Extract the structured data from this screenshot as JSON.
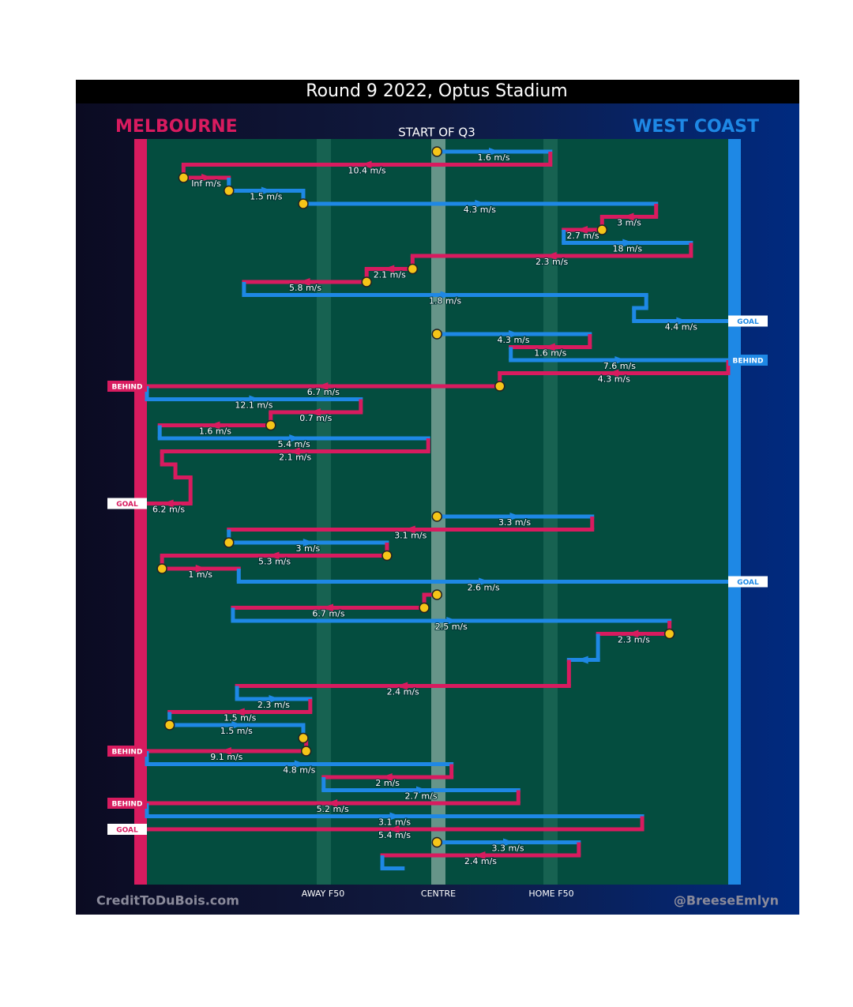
{
  "title": "Round 9 2022, Optus Stadium",
  "period": "START OF Q3",
  "teams": [
    {
      "name": "MELBOURNE",
      "color": "#d81b5f"
    },
    {
      "name": "WEST COAST",
      "color": "#1e88e5"
    }
  ],
  "field_lines": [
    "AWAY F50",
    "CENTRE",
    "HOME F50"
  ],
  "credits": [
    "CreditToDuBois.com",
    "@BreeseEmlyn"
  ],
  "chains": [
    [
      {
        "row": 0,
        "team": "WEST COAST",
        "from": 49.9,
        "to": 69.4,
        "speed": "1.6 m/s",
        "mark": true
      },
      {
        "row": 1,
        "team": "MELBOURNE",
        "from": 69.4,
        "to": 6.3,
        "speed": "10.4 m/s"
      },
      {
        "row": 2,
        "team": "MELBOURNE",
        "from": 6.3,
        "to": 14.1,
        "speed": "Inf m/s",
        "mark": true
      },
      {
        "row": 3,
        "team": "WEST COAST",
        "from": 14.1,
        "to": 26.9,
        "speed": "1.5 m/s",
        "mark": true
      },
      {
        "row": 4,
        "team": "WEST COAST",
        "from": 26.9,
        "to": 87.6,
        "speed": "4.3 m/s",
        "mark": true
      },
      {
        "row": 5,
        "team": "MELBOURNE",
        "from": 87.6,
        "to": 78.3,
        "speed": "3 m/s"
      },
      {
        "row": 6,
        "team": "MELBOURNE",
        "from": 78.3,
        "to": 71.7,
        "speed": "2.7 m/s",
        "mark": true
      },
      {
        "row": 7,
        "team": "WEST COAST",
        "from": 71.7,
        "to": 93.6,
        "speed": "18 m/s"
      },
      {
        "row": 8,
        "team": "MELBOURNE",
        "from": 93.6,
        "to": 45.7,
        "speed": "2.3 m/s"
      },
      {
        "row": 9,
        "team": "MELBOURNE",
        "from": 45.7,
        "to": 37.8,
        "speed": "2.1 m/s",
        "mark": true
      },
      {
        "row": 10,
        "team": "MELBOURNE",
        "from": 37.8,
        "to": 16.7,
        "speed": "5.8 m/s",
        "mark": true
      },
      {
        "row": 11,
        "team": "WEST COAST",
        "from": 16.7,
        "to": 85.9,
        "speed": "1.8 m/s"
      },
      {
        "row": 12,
        "team": "WEST COAST",
        "from": 85.9,
        "to": 83.8
      },
      {
        "row": 13,
        "team": "WEST COAST",
        "from": 83.8,
        "to": 100,
        "speed": "4.4 m/s",
        "result": "GOAL"
      }
    ],
    [
      {
        "row": 14,
        "team": "WEST COAST",
        "from": 49.9,
        "to": 76.2,
        "speed": "4.3 m/s",
        "mark": true
      },
      {
        "row": 15,
        "team": "MELBOURNE",
        "from": 76.2,
        "to": 62.6,
        "speed": "1.6 m/s"
      },
      {
        "row": 16,
        "team": "WEST COAST",
        "from": 62.6,
        "to": 100,
        "speed": "7.6 m/s",
        "result": "BEHIND"
      },
      {
        "row": 17,
        "team": "MELBOURNE",
        "from": 100,
        "to": 60.7,
        "speed": "4.3 m/s"
      },
      {
        "row": 18,
        "team": "MELBOURNE",
        "from": 60.7,
        "to": 0,
        "speed": "6.7 m/s",
        "mark": true,
        "result": "BEHIND"
      },
      {
        "row": 19,
        "team": "WEST COAST",
        "from": 0,
        "to": 36.8,
        "speed": "12.1 m/s"
      },
      {
        "row": 20,
        "team": "MELBOURNE",
        "from": 36.8,
        "to": 21.3,
        "speed": "0.7 m/s"
      },
      {
        "row": 21,
        "team": "MELBOURNE",
        "from": 21.3,
        "to": 2.2,
        "speed": "1.6 m/s",
        "mark": true
      },
      {
        "row": 22,
        "team": "WEST COAST",
        "from": 2.2,
        "to": 48.4,
        "speed": "5.4 m/s"
      },
      {
        "row": 23,
        "team": "MELBOURNE",
        "from": 48.4,
        "to": 2.6,
        "speed": "2.1 m/s"
      },
      {
        "row": 24,
        "team": "MELBOURNE",
        "from": 2.6,
        "to": 4.9
      },
      {
        "row": 25,
        "team": "MELBOURNE",
        "from": 4.9,
        "to": 7.5
      },
      {
        "row": 27,
        "team": "MELBOURNE",
        "from": 7.5,
        "to": 0,
        "speed": "6.2 m/s",
        "result": "GOAL"
      }
    ],
    [
      {
        "row": 28,
        "team": "WEST COAST",
        "from": 49.9,
        "to": 76.6,
        "speed": "3.3 m/s",
        "mark": true
      },
      {
        "row": 29,
        "team": "MELBOURNE",
        "from": 76.6,
        "to": 14.1,
        "speed": "3.1 m/s"
      },
      {
        "row": 30,
        "team": "WEST COAST",
        "from": 14.1,
        "to": 41.3,
        "speed": "3 m/s",
        "mark": true
      },
      {
        "row": 31,
        "team": "MELBOURNE",
        "from": 41.3,
        "to": 2.6,
        "speed": "5.3 m/s",
        "mark": true
      },
      {
        "row": 32,
        "team": "MELBOURNE",
        "from": 2.6,
        "to": 15.8,
        "speed": "1 m/s",
        "mark": true
      },
      {
        "row": 33,
        "team": "WEST COAST",
        "from": 15.8,
        "to": 100,
        "speed": "2.6 m/s",
        "result": "GOAL"
      }
    ],
    [
      {
        "row": 34,
        "team": "MELBOURNE",
        "from": 49.9,
        "to": 47.7,
        "mark": true
      },
      {
        "row": 35,
        "team": "MELBOURNE",
        "from": 47.7,
        "to": 14.8,
        "speed": "6.7 m/s",
        "mark": true
      },
      {
        "row": 36,
        "team": "WEST COAST",
        "from": 14.8,
        "to": 89.9,
        "speed": "2.5 m/s"
      },
      {
        "row": 37,
        "team": "MELBOURNE",
        "from": 89.9,
        "to": 77.6,
        "speed": "2.3 m/s",
        "mark": true
      },
      {
        "row": 39,
        "team": "WEST COAST",
        "from": 77.6,
        "to": 72.6
      },
      {
        "row": 41,
        "team": "MELBOURNE",
        "from": 72.6,
        "to": 15.5,
        "speed": "2.4 m/s"
      },
      {
        "row": 42,
        "team": "WEST COAST",
        "from": 15.5,
        "to": 28.1,
        "speed": "2.3 m/s"
      },
      {
        "row": 43,
        "team": "MELBOURNE",
        "from": 28.1,
        "to": 3.9,
        "speed": "1.5 m/s"
      },
      {
        "row": 44,
        "team": "WEST COAST",
        "from": 3.9,
        "to": 26.9,
        "speed": "1.5 m/s",
        "mark": true
      },
      {
        "row": 45,
        "team": "WEST COAST",
        "from": 26.9,
        "to": 27.4,
        "mark": true
      },
      {
        "row": 46,
        "team": "MELBOURNE",
        "from": 27.4,
        "to": 0,
        "speed": "9.1 m/s",
        "mark": true,
        "result": "BEHIND"
      },
      {
        "row": 47,
        "team": "WEST COAST",
        "from": 0,
        "to": 52.4,
        "speed": "4.8 m/s"
      },
      {
        "row": 48,
        "team": "MELBOURNE",
        "from": 52.4,
        "to": 30.4,
        "speed": "2 m/s"
      },
      {
        "row": 49,
        "team": "WEST COAST",
        "from": 30.4,
        "to": 63.9,
        "speed": "2.7 m/s"
      },
      {
        "row": 50,
        "team": "MELBOURNE",
        "from": 63.9,
        "to": 0,
        "speed": "5.2 m/s",
        "result": "BEHIND"
      },
      {
        "row": 51,
        "team": "WEST COAST",
        "from": 0,
        "to": 85.2,
        "speed": "3.1 m/s"
      },
      {
        "row": 52,
        "team": "MELBOURNE",
        "from": 85.2,
        "to": 0,
        "speed": "5.4 m/s",
        "result": "GOAL"
      }
    ],
    [
      {
        "row": 53,
        "team": "WEST COAST",
        "from": 49.9,
        "to": 74.3,
        "speed": "3.3 m/s",
        "mark": true
      },
      {
        "row": 54,
        "team": "MELBOURNE",
        "from": 74.3,
        "to": 40.5,
        "speed": "2.4 m/s"
      },
      {
        "row": 55,
        "team": "WEST COAST",
        "from": 40.5,
        "to": 44.0
      }
    ]
  ]
}
